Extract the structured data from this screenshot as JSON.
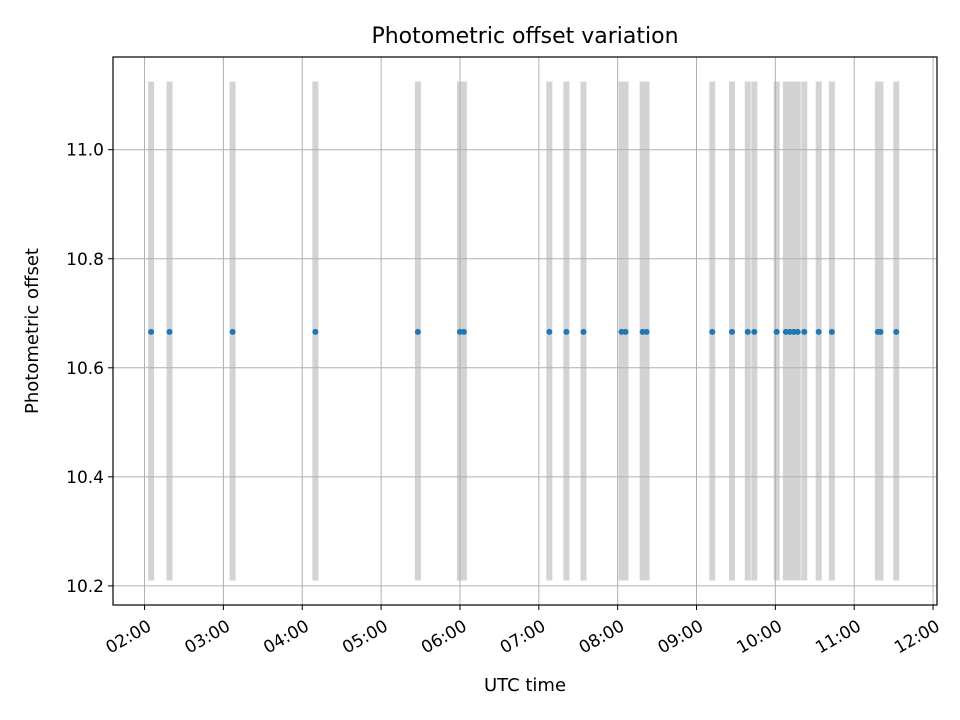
{
  "chart_data": {
    "type": "scatter",
    "title": "Photometric offset variation",
    "xlabel": "UTC time",
    "ylabel": "Photometric offset",
    "x_ticks": [
      "02:00",
      "03:00",
      "04:00",
      "05:00",
      "06:00",
      "07:00",
      "08:00",
      "09:00",
      "10:00",
      "11:00",
      "12:00"
    ],
    "y_ticks": [
      "10.2",
      "10.4",
      "10.6",
      "10.8",
      "11.0"
    ],
    "xlim": [
      "01:36",
      "12:03"
    ],
    "ylim": [
      10.165,
      11.17
    ],
    "grid": true,
    "colors": {
      "points": "#1f77b4",
      "bands": "#d3d3d3",
      "grid": "#b0b0b0"
    },
    "bands": {
      "y_range": [
        10.21,
        11.125
      ],
      "x": [
        "02:05",
        "02:19",
        "03:07",
        "04:10",
        "05:28",
        "06:00",
        "06:03",
        "07:08",
        "07:21",
        "07:34",
        "08:03",
        "08:06",
        "08:19",
        "08:22",
        "09:12",
        "09:27",
        "09:39",
        "09:44",
        "10:01",
        "10:08",
        "10:11",
        "10:14",
        "10:17",
        "10:22",
        "10:33",
        "10:43",
        "11:18",
        "11:20",
        "11:32"
      ]
    },
    "series": [
      {
        "x": [
          "02:05",
          "02:19",
          "03:07",
          "04:10",
          "05:28",
          "06:00",
          "06:03",
          "07:08",
          "07:21",
          "07:34",
          "08:03",
          "08:06",
          "08:19",
          "08:22",
          "09:12",
          "09:27",
          "09:39",
          "09:44",
          "10:01",
          "10:08",
          "10:11",
          "10:14",
          "10:17",
          "10:22",
          "10:33",
          "10:43",
          "11:18",
          "11:20",
          "11:32"
        ],
        "y": [
          10.666,
          10.666,
          10.666,
          10.666,
          10.666,
          10.666,
          10.666,
          10.666,
          10.666,
          10.666,
          10.666,
          10.666,
          10.666,
          10.666,
          10.666,
          10.666,
          10.666,
          10.666,
          10.666,
          10.666,
          10.666,
          10.666,
          10.666,
          10.666,
          10.666,
          10.666,
          10.666,
          10.666,
          10.666
        ]
      }
    ]
  }
}
